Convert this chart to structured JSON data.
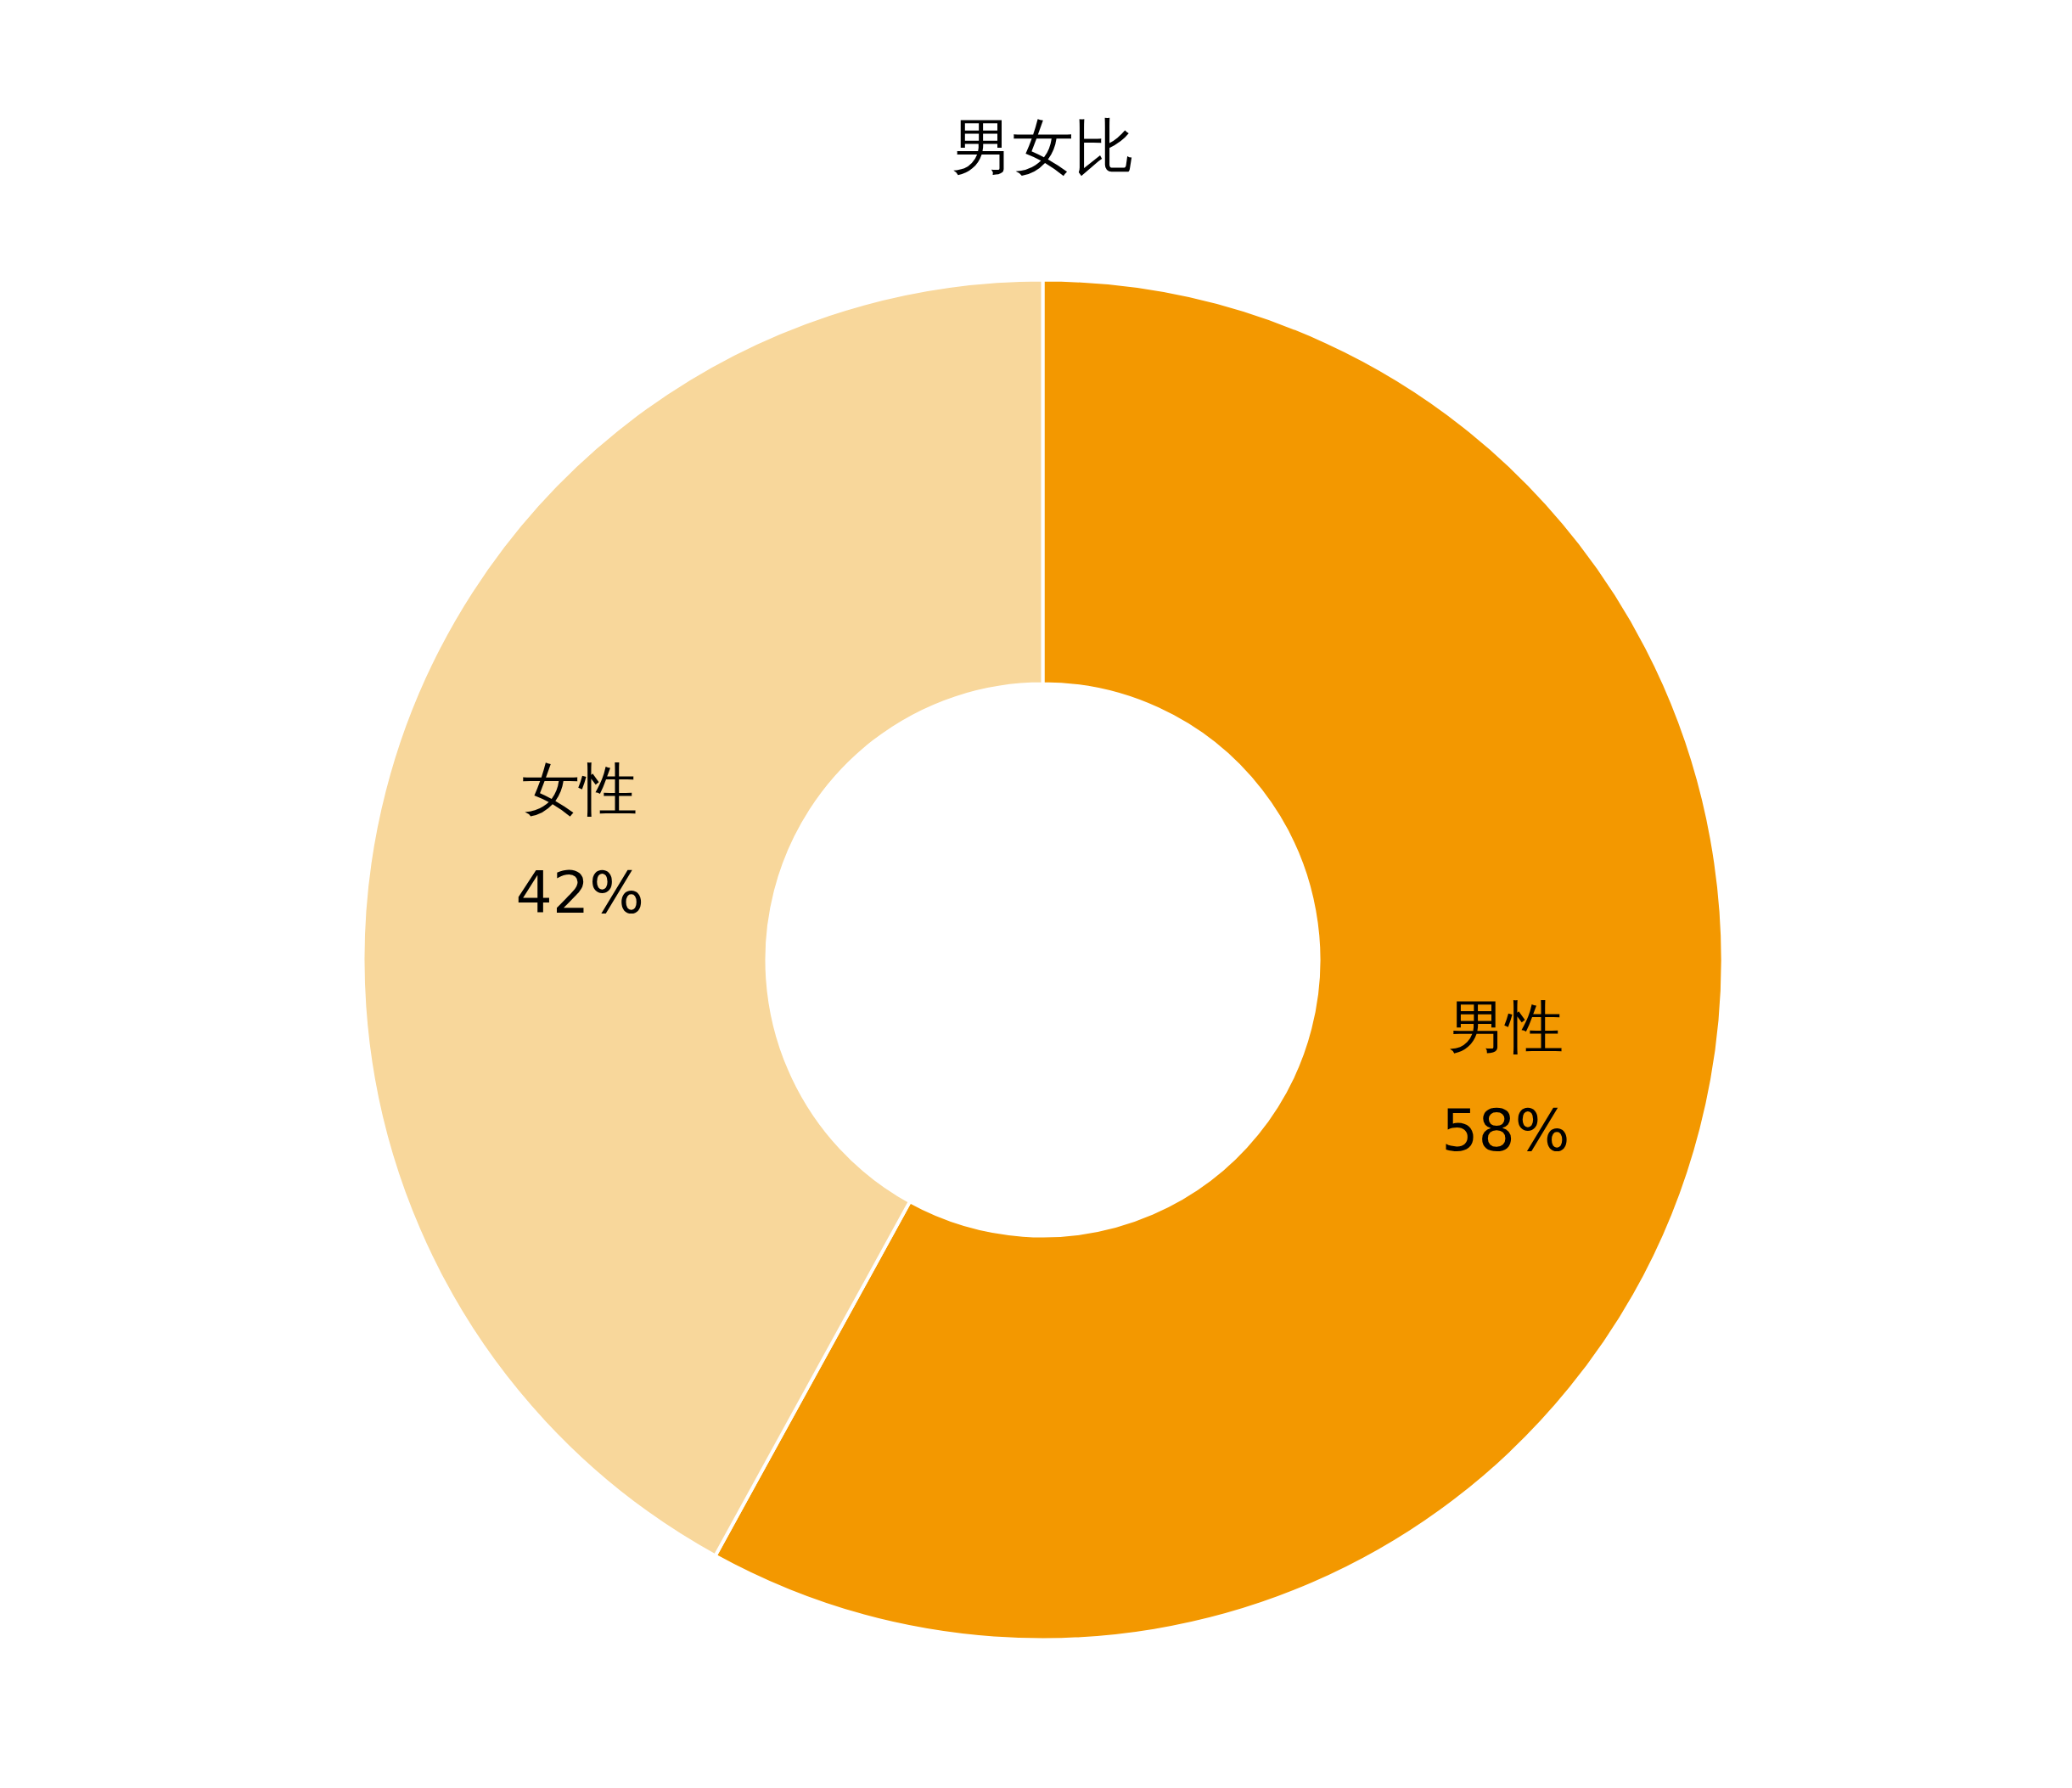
{
  "chart_data": {
    "type": "donut",
    "title": "男女比",
    "categories": [
      "男性",
      "女性"
    ],
    "values": [
      58,
      42
    ],
    "value_labels": [
      "58%",
      "42%"
    ],
    "colors": [
      "#f39800",
      "#f8d79b"
    ]
  }
}
